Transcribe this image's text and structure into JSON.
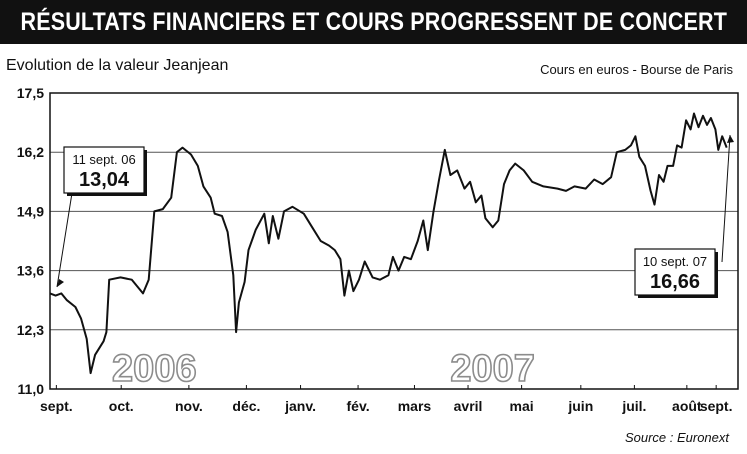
{
  "header": {
    "title": "RÉSULTATS FINANCIERS ET COURS PROGRESSENT DE CONCERT",
    "subtitle": "Evolution de la valeur Jeanjean",
    "units": "Cours en euros - Bourse de Paris",
    "source": "Source : Euronext"
  },
  "colors": {
    "title_bg": "#111111",
    "line": "#111111",
    "grid": "#555555"
  },
  "chart_data": {
    "type": "line",
    "title": "RÉSULTATS FINANCIERS ET COURS PROGRESSENT DE CONCERT",
    "xlabel": "",
    "ylabel": "",
    "ylim": [
      11.0,
      17.5
    ],
    "yticks": [
      "17,5",
      "16,2",
      "14,9",
      "13,6",
      "12,3",
      "11,0"
    ],
    "ytick_values": [
      17.5,
      16.2,
      14.9,
      13.6,
      12.3,
      11.0
    ],
    "grid": "horizontal",
    "xticks": [
      "sept.",
      "oct.",
      "nov.",
      "déc.",
      "janv.",
      "fév.",
      "mars",
      "avril",
      "mai",
      "juin",
      "juil.",
      "août",
      "sept."
    ],
    "years": [
      "2006",
      "2007"
    ],
    "series": [
      {
        "values": [
          [
            0.0,
            13.1
          ],
          [
            0.1,
            13.05
          ],
          [
            0.2,
            13.1
          ],
          [
            0.3,
            12.95
          ],
          [
            0.45,
            12.8
          ],
          [
            0.55,
            12.55
          ],
          [
            0.65,
            12.1
          ],
          [
            0.72,
            11.35
          ],
          [
            0.8,
            11.75
          ],
          [
            0.95,
            12.05
          ],
          [
            1.0,
            12.25
          ],
          [
            1.05,
            13.4
          ],
          [
            1.25,
            13.45
          ],
          [
            1.45,
            13.4
          ],
          [
            1.65,
            13.1
          ],
          [
            1.75,
            13.4
          ],
          [
            1.85,
            14.9
          ],
          [
            2.0,
            14.95
          ],
          [
            2.15,
            15.2
          ],
          [
            2.25,
            16.2
          ],
          [
            2.35,
            16.3
          ],
          [
            2.5,
            16.15
          ],
          [
            2.62,
            15.9
          ],
          [
            2.72,
            15.45
          ],
          [
            2.85,
            15.2
          ],
          [
            2.92,
            14.85
          ],
          [
            3.05,
            14.8
          ],
          [
            3.15,
            14.45
          ],
          [
            3.25,
            13.5
          ],
          [
            3.3,
            12.25
          ],
          [
            3.35,
            12.9
          ],
          [
            3.45,
            13.35
          ],
          [
            3.52,
            14.05
          ],
          [
            3.65,
            14.5
          ],
          [
            3.8,
            14.85
          ],
          [
            3.88,
            14.2
          ],
          [
            3.95,
            14.8
          ],
          [
            4.05,
            14.3
          ],
          [
            4.15,
            14.9
          ],
          [
            4.3,
            15.0
          ],
          [
            4.5,
            14.85
          ],
          [
            4.65,
            14.55
          ],
          [
            4.8,
            14.25
          ],
          [
            4.95,
            14.15
          ],
          [
            5.05,
            14.05
          ],
          [
            5.15,
            13.85
          ],
          [
            5.22,
            13.05
          ],
          [
            5.3,
            13.6
          ],
          [
            5.38,
            13.15
          ],
          [
            5.48,
            13.4
          ],
          [
            5.58,
            13.8
          ],
          [
            5.72,
            13.45
          ],
          [
            5.85,
            13.4
          ],
          [
            6.0,
            13.5
          ],
          [
            6.08,
            13.9
          ],
          [
            6.18,
            13.6
          ],
          [
            6.28,
            13.9
          ],
          [
            6.4,
            13.85
          ],
          [
            6.52,
            14.25
          ],
          [
            6.62,
            14.7
          ],
          [
            6.7,
            14.05
          ],
          [
            6.8,
            14.9
          ],
          [
            6.9,
            15.6
          ],
          [
            7.0,
            16.25
          ],
          [
            7.1,
            15.7
          ],
          [
            7.22,
            15.8
          ],
          [
            7.35,
            15.4
          ],
          [
            7.45,
            15.55
          ],
          [
            7.55,
            15.1
          ],
          [
            7.65,
            15.25
          ],
          [
            7.72,
            14.75
          ],
          [
            7.85,
            14.55
          ],
          [
            7.95,
            14.7
          ],
          [
            8.05,
            15.5
          ],
          [
            8.15,
            15.8
          ],
          [
            8.25,
            15.95
          ],
          [
            8.4,
            15.8
          ],
          [
            8.55,
            15.55
          ],
          [
            8.75,
            15.45
          ],
          [
            9.0,
            15.4
          ],
          [
            9.15,
            15.35
          ],
          [
            9.3,
            15.45
          ],
          [
            9.5,
            15.4
          ],
          [
            9.65,
            15.6
          ],
          [
            9.8,
            15.5
          ],
          [
            9.95,
            15.65
          ],
          [
            10.05,
            16.2
          ],
          [
            10.2,
            16.25
          ],
          [
            10.3,
            16.35
          ],
          [
            10.38,
            16.55
          ],
          [
            10.45,
            16.1
          ],
          [
            10.55,
            15.9
          ],
          [
            10.65,
            15.35
          ],
          [
            10.72,
            15.05
          ],
          [
            10.8,
            15.7
          ],
          [
            10.88,
            15.55
          ],
          [
            10.95,
            15.9
          ],
          [
            11.05,
            15.9
          ],
          [
            11.12,
            16.35
          ],
          [
            11.2,
            16.3
          ],
          [
            11.28,
            16.9
          ],
          [
            11.36,
            16.7
          ],
          [
            11.42,
            17.05
          ],
          [
            11.5,
            16.75
          ],
          [
            11.58,
            17.0
          ],
          [
            11.65,
            16.8
          ],
          [
            11.72,
            16.95
          ],
          [
            11.8,
            16.7
          ],
          [
            11.85,
            16.25
          ],
          [
            11.92,
            16.55
          ],
          [
            12.0,
            16.3
          ]
        ]
      }
    ],
    "annotations": [
      {
        "date": "11 sept. 06",
        "value": "13,04"
      },
      {
        "date": "10 sept. 07",
        "value": "16,66"
      }
    ]
  }
}
